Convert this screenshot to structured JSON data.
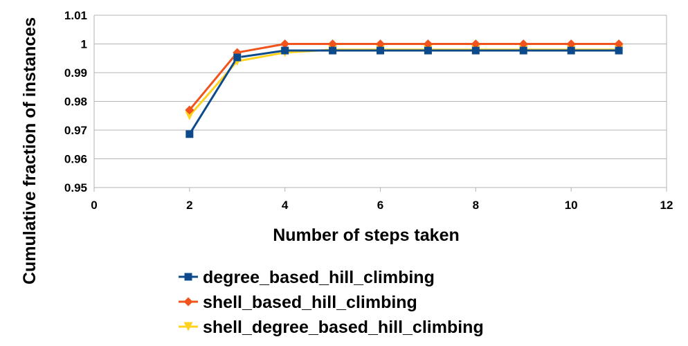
{
  "chart_data": {
    "type": "line",
    "xlabel": "Number of steps taken",
    "ylabel": "Cumulative fraction of instances",
    "xlim": [
      0,
      12
    ],
    "ylim": [
      0.95,
      1.01
    ],
    "xticks": [
      0,
      2,
      4,
      6,
      8,
      10,
      12
    ],
    "yticks": [
      0.95,
      0.96,
      0.97,
      0.98,
      0.99,
      1,
      1.01
    ],
    "xtick_labels": [
      "0",
      "2",
      "4",
      "6",
      "8",
      "10",
      "12"
    ],
    "ytick_labels": [
      "0.95",
      "0.96",
      "0.97",
      "0.98",
      "0.99",
      "1",
      "1.01"
    ],
    "grid": "horizontal",
    "legend": "bottom",
    "x": [
      2,
      3,
      4,
      5,
      6,
      7,
      8,
      9,
      10,
      11
    ],
    "series": [
      {
        "name": "degree_based_hill_climbing",
        "color": "#0d4a8b",
        "marker": "square",
        "values": [
          0.9686,
          0.9953,
          0.9977,
          0.9977,
          0.9977,
          0.9977,
          0.9977,
          0.9977,
          0.9977,
          0.9977
        ]
      },
      {
        "name": "shell_based_hill_climbing",
        "color": "#f0531c",
        "marker": "diamond",
        "values": [
          0.977,
          0.997,
          1.0,
          1.0,
          1.0,
          1.0,
          1.0,
          1.0,
          1.0,
          1.0
        ]
      },
      {
        "name": "shell_degree_based_hill_climbing",
        "color": "#ffd320",
        "marker": "triangle-down",
        "values": [
          0.975,
          0.994,
          0.997,
          0.998,
          0.998,
          0.998,
          0.998,
          0.998,
          0.998,
          0.998
        ]
      }
    ]
  }
}
